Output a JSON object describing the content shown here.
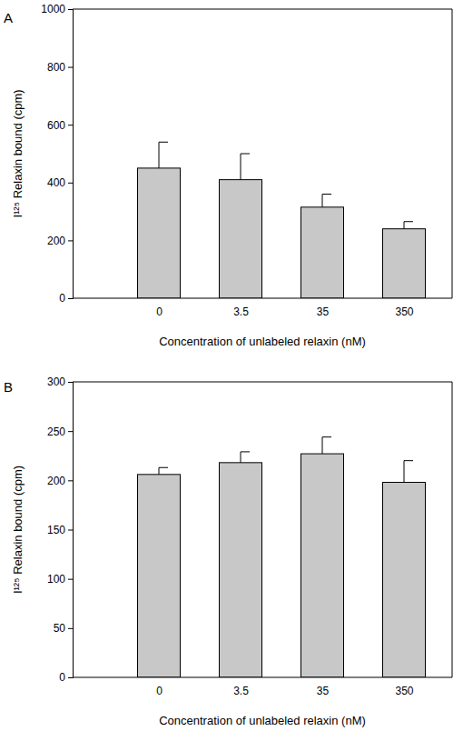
{
  "chart_data": [
    {
      "type": "bar",
      "title": "A",
      "y_label": "I¹²⁵ Relaxin bound (cpm)",
      "x_label": "Concentration of unlabeled relaxin (nM)",
      "categories": [
        "0",
        "3.5",
        "35",
        "350"
      ],
      "values": [
        450,
        410,
        315,
        240
      ],
      "errors": [
        90,
        90,
        45,
        25
      ],
      "color": "#c8c8c8",
      "ylim": [
        0,
        1000
      ],
      "yticks": [
        0,
        200,
        400,
        600,
        800,
        1000
      ]
    },
    {
      "type": "bar",
      "title": "B",
      "y_label": "I¹²⁵ Relaxin bound (cpm)",
      "x_label": "Concentration of unlabeled relaxin (nM)",
      "categories": [
        "0",
        "3.5",
        "35",
        "350"
      ],
      "values": [
        206,
        218,
        227,
        198
      ],
      "errors": [
        7,
        11,
        17,
        22
      ],
      "color": "#c8c8c8",
      "ylim": [
        0,
        300
      ],
      "yticks": [
        0,
        50,
        100,
        150,
        200,
        250,
        300
      ]
    }
  ]
}
